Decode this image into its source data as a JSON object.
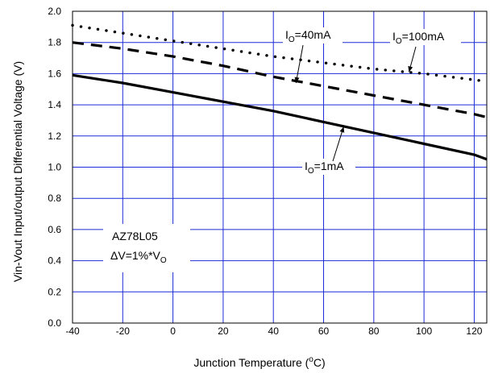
{
  "chart_data": {
    "type": "line",
    "title": "",
    "xlabel": {
      "pre": "Junction Temperature (",
      "sup": "o",
      "post": "C)"
    },
    "ylabel": "Vin-Vout Input/output Differential Voltage (V)",
    "xlim": [
      -40,
      125
    ],
    "ylim": [
      0.0,
      2.0
    ],
    "grid": true,
    "x_ticks": [
      "-40",
      "-20",
      "0",
      "20",
      "40",
      "60",
      "80",
      "100",
      "120"
    ],
    "y_ticks": [
      "0.0",
      "0.2",
      "0.4",
      "0.6",
      "0.8",
      "1.0",
      "1.2",
      "1.4",
      "1.6",
      "1.8",
      "2.0"
    ],
    "series": [
      {
        "name": {
          "pre": "I",
          "sub": "O",
          "post": "=1mA"
        },
        "style": "solid",
        "x": [
          -40,
          -20,
          0,
          20,
          40,
          60,
          80,
          100,
          120,
          125
        ],
        "y": [
          1.59,
          1.54,
          1.48,
          1.42,
          1.36,
          1.29,
          1.22,
          1.15,
          1.08,
          1.05
        ]
      },
      {
        "name": {
          "pre": "I",
          "sub": "O",
          "post": "=40mA"
        },
        "style": "dashed",
        "x": [
          -40,
          -20,
          0,
          20,
          40,
          60,
          80,
          100,
          120,
          125
        ],
        "y": [
          1.8,
          1.76,
          1.71,
          1.65,
          1.58,
          1.52,
          1.46,
          1.4,
          1.34,
          1.32
        ]
      },
      {
        "name": {
          "pre": "I",
          "sub": "O",
          "post": "=100mA"
        },
        "style": "dotted",
        "x": [
          -40,
          -20,
          0,
          20,
          40,
          60,
          80,
          100,
          120,
          125
        ],
        "y": [
          1.91,
          1.86,
          1.81,
          1.76,
          1.71,
          1.67,
          1.63,
          1.6,
          1.56,
          1.55
        ]
      }
    ],
    "annotations": [
      {
        "id": "a-1ma",
        "series": 0,
        "text": {
          "pre": "I",
          "sub": "O",
          "post": "=1mA"
        },
        "arrow_to": [
          68,
          1.26
        ]
      },
      {
        "id": "a-40ma",
        "series": 1,
        "text": {
          "pre": "I",
          "sub": "O",
          "post": "=40mA"
        },
        "arrow_to": [
          49,
          1.54
        ]
      },
      {
        "id": "a-100ma",
        "series": 2,
        "text": {
          "pre": "I",
          "sub": "O",
          "post": "=100mA"
        },
        "arrow_to": [
          94,
          1.61
        ]
      }
    ],
    "label_box": {
      "line1": "AZ78L05",
      "line2": {
        "pre": "ΔV=1%*V",
        "sub": "O"
      }
    }
  }
}
